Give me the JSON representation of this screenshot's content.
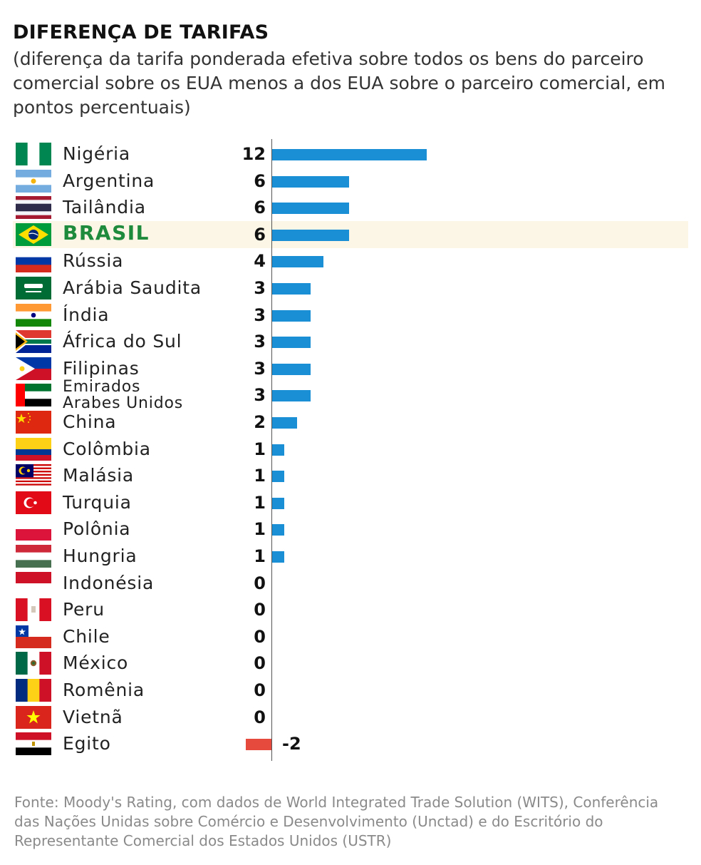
{
  "title": "DIFERENÇA DE TARIFAS",
  "subtitle": "(diferença da tarifa ponderada efetiva sobre todos os bens do parceiro comercial sobre os EUA menos a dos EUA sobre o parceiro comercial, em pontos percentuais)",
  "source": "Fonte: Moody's Rating, com dados de World Integrated Trade Solution (WITS), Conferência das Nações Unidas sobre Comércio e Desenvolvimento (Unctad) e do Escritório do Representante Comercial dos Estados Unidos (USTR)",
  "colors": {
    "positive": "#1a8fd6",
    "negative": "#e64a3c",
    "highlight_text": "#1e8a3c",
    "highlight_bg": "#fbf6e6"
  },
  "chart_data": {
    "type": "bar",
    "orientation": "horizontal",
    "categories": [
      "Nigéria",
      "Argentina",
      "Tailândia",
      "BRASIL",
      "Rússia",
      "Arábia Saudita",
      "Índia",
      "África do Sul",
      "Filipinas",
      "Emirados Arabes Unidos",
      "China",
      "Colômbia",
      "Malásia",
      "Turquia",
      "Polônia",
      "Hungria",
      "Indonésia",
      "Peru",
      "Chile",
      "México",
      "Romênia",
      "Vietnã",
      "Egito"
    ],
    "values": [
      12,
      6,
      6,
      6,
      4,
      3,
      3,
      3,
      3,
      3,
      2,
      1,
      1,
      1,
      1,
      1,
      0,
      0,
      0,
      0,
      0,
      0,
      -2
    ],
    "value_labels": [
      "12",
      "6",
      "6",
      "6",
      "4",
      "3",
      "3",
      "3",
      "3",
      "3",
      "2",
      "1",
      "1",
      "1",
      "1",
      "1",
      "0",
      "0",
      "0",
      "0",
      "0",
      "0",
      "-2"
    ],
    "highlighted": "BRASIL",
    "flags": [
      "nigeria-flag-icon",
      "argentina-flag-icon",
      "thailand-flag-icon",
      "brazil-flag-icon",
      "russia-flag-icon",
      "saudi-arabia-flag-icon",
      "india-flag-icon",
      "south-africa-flag-icon",
      "philippines-flag-icon",
      "uae-flag-icon",
      "china-flag-icon",
      "colombia-flag-icon",
      "malaysia-flag-icon",
      "turkey-flag-icon",
      "poland-flag-icon",
      "hungary-flag-icon",
      "indonesia-flag-icon",
      "peru-flag-icon",
      "chile-flag-icon",
      "mexico-flag-icon",
      "romania-flag-icon",
      "vietnam-flag-icon",
      "egypt-flag-icon"
    ]
  }
}
